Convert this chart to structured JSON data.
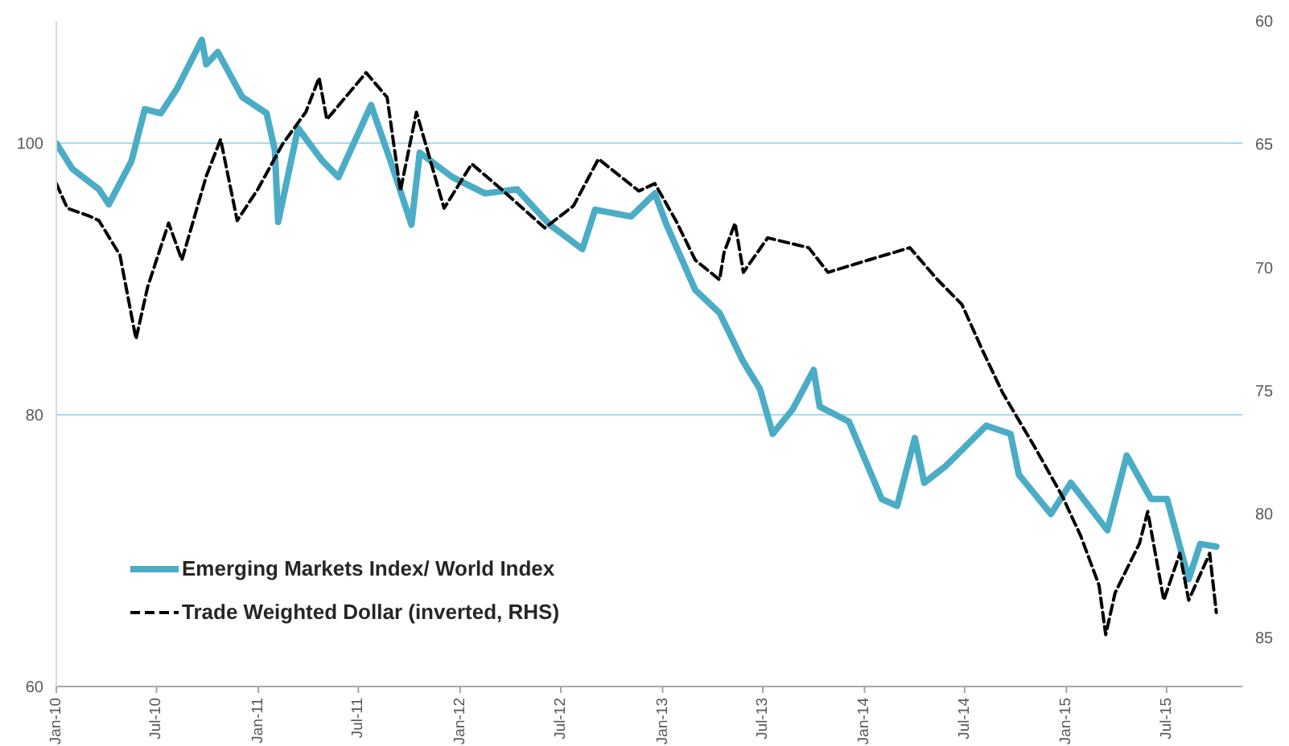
{
  "chart_data": {
    "type": "line",
    "ylim": [
      60,
      109
    ],
    "yticks": [
      60,
      80,
      100
    ],
    "y2lim": [
      87,
      60
    ],
    "y2ticks": [
      60,
      65,
      70,
      75,
      80,
      85
    ],
    "xlim": [
      "2010-01-01",
      "2015-11-15"
    ],
    "xticks": [
      {
        "value": "2010-01-01",
        "label": "Jan-10"
      },
      {
        "value": "2010-07-01",
        "label": "Jul-10"
      },
      {
        "value": "2011-01-01",
        "label": "Jan-11"
      },
      {
        "value": "2011-07-01",
        "label": "Jul-11"
      },
      {
        "value": "2012-01-01",
        "label": "Jan-12"
      },
      {
        "value": "2012-07-01",
        "label": "Jul-12"
      },
      {
        "value": "2013-01-01",
        "label": "Jan-13"
      },
      {
        "value": "2013-07-01",
        "label": "Jul-13"
      },
      {
        "value": "2014-01-01",
        "label": "Jan-14"
      },
      {
        "value": "2014-07-01",
        "label": "Jul-14"
      },
      {
        "value": "2015-01-01",
        "label": "Jan-15"
      },
      {
        "value": "2015-07-01",
        "label": "Jul-15"
      }
    ],
    "grid": "y",
    "legend": "bottom left",
    "series": [
      {
        "name": "Emerging Markets Index/ World Index",
        "color": "#4bacc6",
        "line_style": "solid",
        "x": [
          "2010-01-01",
          "2010-01-30",
          "2010-03-19",
          "2010-04-06",
          "2010-05-17",
          "2010-06-10",
          "2010-07-09",
          "2010-08-07",
          "2010-09-21",
          "2010-09-29",
          "2010-10-20",
          "2010-12-03",
          "2011-01-16",
          "2011-01-31",
          "2011-02-06",
          "2011-03-14",
          "2011-04-27",
          "2011-05-26",
          "2011-07-24",
          "2011-08-28",
          "2011-10-05",
          "2011-10-20",
          "2011-12-18",
          "2012-02-15",
          "2012-04-13",
          "2012-06-11",
          "2012-08-09",
          "2012-09-01",
          "2012-11-05",
          "2012-12-18",
          "2013-01-08",
          "2013-03-01",
          "2013-04-14",
          "2013-05-27",
          "2013-06-26",
          "2013-07-19",
          "2013-08-24",
          "2013-10-01",
          "2013-10-12",
          "2013-12-04",
          "2014-02-01",
          "2014-03-01",
          "2014-04-02",
          "2014-04-19",
          "2014-05-27",
          "2014-08-09",
          "2014-09-22",
          "2014-10-07",
          "2014-12-04",
          "2015-01-09",
          "2015-03-16",
          "2015-04-20",
          "2015-06-03",
          "2015-07-02",
          "2015-08-10",
          "2015-08-31",
          "2015-09-29"
        ],
        "values": [
          100,
          98.1,
          96.6,
          95.5,
          98.7,
          102.5,
          102.2,
          104,
          107.6,
          105.8,
          106.7,
          103.4,
          102.2,
          99.5,
          94.2,
          101.1,
          98.7,
          97.5,
          102.8,
          98.7,
          94,
          99.3,
          97.5,
          96.3,
          96.6,
          94,
          92.2,
          95.1,
          94.6,
          96.3,
          94,
          89.2,
          87.5,
          83.9,
          81.9,
          78.6,
          80.4,
          83.3,
          80.6,
          79.5,
          73.8,
          73.3,
          78.3,
          75,
          76.2,
          79.2,
          78.6,
          75.6,
          72.7,
          75,
          71.5,
          77,
          73.8,
          73.8,
          67.9,
          70.5,
          70.3
        ]
      },
      {
        "name": "Trade Weighted Dollar (inverted, RHS)",
        "color": "#000000",
        "line_style": "dashed",
        "axis": "y2",
        "x": [
          "2010-01-01",
          "2010-01-21",
          "2010-02-28",
          "2010-03-19",
          "2010-04-26",
          "2010-05-25",
          "2010-06-15",
          "2010-07-23",
          "2010-08-16",
          "2010-09-29",
          "2010-10-25",
          "2010-11-24",
          "2011-01-01",
          "2011-02-14",
          "2011-03-28",
          "2011-04-21",
          "2011-05-05",
          "2011-07-15",
          "2011-08-22",
          "2011-09-15",
          "2011-10-14",
          "2011-12-03",
          "2012-01-22",
          "2012-03-14",
          "2012-06-02",
          "2012-07-24",
          "2012-09-07",
          "2012-11-19",
          "2012-12-18",
          "2013-01-25",
          "2013-03-01",
          "2013-04-14",
          "2013-04-22",
          "2013-05-12",
          "2013-05-27",
          "2013-07-10",
          "2013-09-22",
          "2013-10-27",
          "2014-01-08",
          "2014-03-24",
          "2014-05-13",
          "2014-06-26",
          "2014-08-03",
          "2014-09-08",
          "2014-11-05",
          "2014-12-25",
          "2015-01-27",
          "2015-03-01",
          "2015-03-13",
          "2015-03-30",
          "2015-05-13",
          "2015-05-28",
          "2015-06-26",
          "2015-07-25",
          "2015-08-10",
          "2015-09-17",
          "2015-09-29"
        ],
        "values": [
          66.6,
          67.6,
          67.9,
          68.1,
          69.5,
          72.9,
          70.8,
          68.2,
          69.7,
          66.3,
          64.8,
          68.1,
          66.8,
          65,
          63.7,
          62.3,
          64,
          62.1,
          63.1,
          66.9,
          63.7,
          67.6,
          65.8,
          66.8,
          68.4,
          67.5,
          65.6,
          66.9,
          66.6,
          68.1,
          69.7,
          70.5,
          69.4,
          68.2,
          70.2,
          68.8,
          69.2,
          70.2,
          69.7,
          69.2,
          70.5,
          71.5,
          73.4,
          75.1,
          77.3,
          79.3,
          80.9,
          82.9,
          84.9,
          83.2,
          81.2,
          79.9,
          83.5,
          81.6,
          83.5,
          81.6,
          84
        ]
      }
    ]
  }
}
